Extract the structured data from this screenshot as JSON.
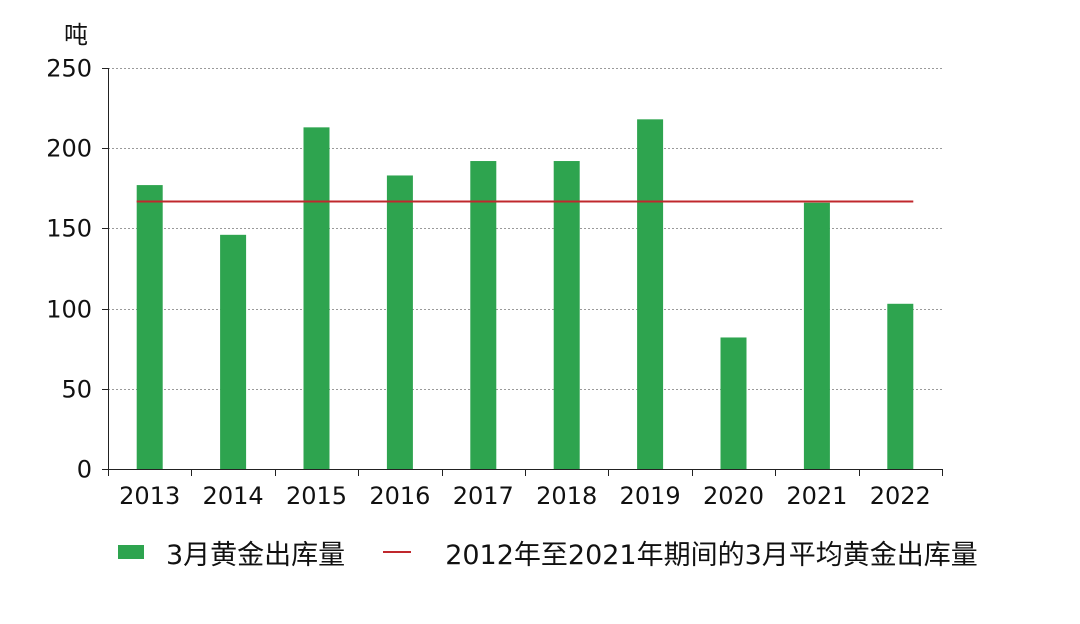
{
  "chart_data": {
    "type": "bar",
    "unit_label": "吨",
    "categories": [
      "2013",
      "2014",
      "2015",
      "2016",
      "2017",
      "2018",
      "2019",
      "2020",
      "2021",
      "2022"
    ],
    "series": [
      {
        "name": "3月黄金出库量",
        "type": "bar",
        "values": [
          177,
          146,
          213,
          183,
          192,
          192,
          218,
          82,
          166,
          103
        ],
        "color": "#2ea44f"
      },
      {
        "name": "2012年至2021年期间的3月平均黄金出库量",
        "type": "line",
        "value": 167,
        "color": "#c0282d"
      }
    ],
    "ylim": [
      0,
      250
    ],
    "yticks": [
      "0",
      "50",
      "100",
      "150",
      "200",
      "250"
    ],
    "grid": true,
    "legend_position": "bottom"
  }
}
